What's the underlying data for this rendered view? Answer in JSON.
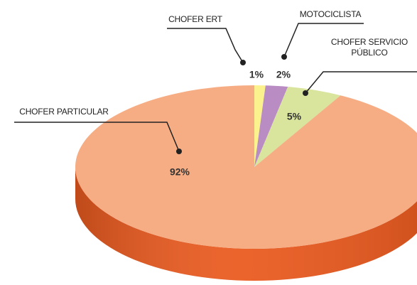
{
  "chart_data": {
    "type": "pie3d",
    "categories": [
      "CHOFER ERT",
      "MOTOCICLISTA",
      "CHOFER SERVICIO PÚBLICO",
      "CHOFER PARTICULAR"
    ],
    "values": [
      1,
      2,
      5,
      92
    ],
    "value_labels": [
      "1%",
      "2%",
      "5%",
      "92%"
    ],
    "colors": [
      "#fbf28e",
      "#b98cc4",
      "#d9e49c",
      "#f6ad84"
    ],
    "side_colors": [
      "#e9d84a",
      "#8f5e9c",
      "#aabd58",
      "#ea5a1f"
    ]
  }
}
